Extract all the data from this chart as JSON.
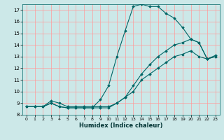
{
  "xlabel": "Humidex (Indice chaleur)",
  "bg_color": "#cce8e8",
  "grid_color": "#ff9999",
  "line_color": "#006666",
  "xlim": [
    -0.5,
    23.5
  ],
  "ylim": [
    8,
    17.5
  ],
  "yticks": [
    8,
    9,
    10,
    11,
    12,
    13,
    14,
    15,
    16,
    17
  ],
  "xticks": [
    0,
    1,
    2,
    3,
    4,
    5,
    6,
    7,
    8,
    9,
    10,
    11,
    12,
    13,
    14,
    15,
    16,
    17,
    18,
    19,
    20,
    21,
    22,
    23
  ],
  "series": [
    {
      "x": [
        0,
        1,
        2,
        3,
        4,
        5,
        6,
        7,
        8,
        9,
        10,
        11,
        12,
        13,
        14,
        15,
        16,
        17,
        18,
        19,
        20,
        21,
        22,
        23
      ],
      "y": [
        8.7,
        8.7,
        8.7,
        9.0,
        8.7,
        8.6,
        8.6,
        8.6,
        8.6,
        9.3,
        10.5,
        13.0,
        15.2,
        17.3,
        17.5,
        17.3,
        17.3,
        16.7,
        16.3,
        15.5,
        14.5,
        14.2,
        12.8,
        13.0
      ]
    },
    {
      "x": [
        0,
        1,
        2,
        3,
        4,
        5,
        6,
        7,
        8,
        9,
        10,
        11,
        12,
        13,
        14,
        15,
        16,
        17,
        18,
        19,
        20,
        21,
        22,
        23
      ],
      "y": [
        8.7,
        8.7,
        8.7,
        9.2,
        9.0,
        8.7,
        8.7,
        8.7,
        8.7,
        8.7,
        8.7,
        9.0,
        9.5,
        10.5,
        11.5,
        12.3,
        13.0,
        13.5,
        14.0,
        14.2,
        14.5,
        14.2,
        12.8,
        13.1
      ]
    },
    {
      "x": [
        0,
        1,
        2,
        3,
        4,
        5,
        6,
        7,
        8,
        9,
        10,
        11,
        12,
        13,
        14,
        15,
        16,
        17,
        18,
        19,
        20,
        21,
        22,
        23
      ],
      "y": [
        8.7,
        8.7,
        8.7,
        9.0,
        8.7,
        8.6,
        8.6,
        8.6,
        8.6,
        8.6,
        8.6,
        9.0,
        9.5,
        10.0,
        11.0,
        11.5,
        12.0,
        12.5,
        13.0,
        13.2,
        13.5,
        13.0,
        12.8,
        13.0
      ]
    }
  ]
}
